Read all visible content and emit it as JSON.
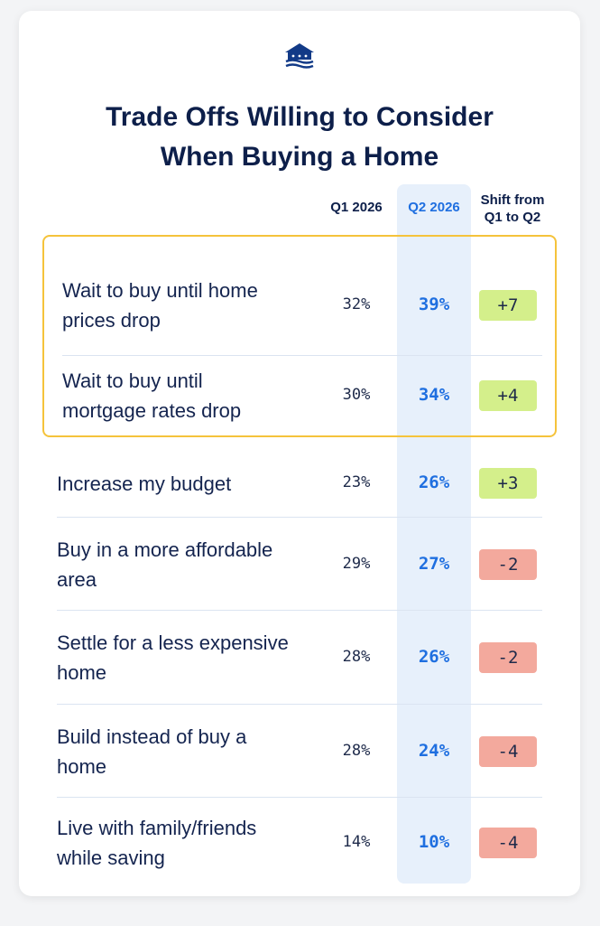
{
  "title_line1": "Trade Offs Willing to Consider",
  "title_line2": "When Buying a Home",
  "columns": {
    "q1": "Q1 2026",
    "q2": "Q2 2026",
    "shift_line1": "Shift from",
    "shift_line2": "Q1 to Q2"
  },
  "colors": {
    "title": "#0d1f4a",
    "q2_accent": "#1f6fe0",
    "positive_shift": "#d4ef8b",
    "negative_shift": "#f3a99d",
    "highlight_border": "#f5c33b"
  },
  "icons": {
    "logo": "house-flag-logo"
  },
  "chart_data": {
    "type": "table",
    "highlighted_rows": [
      0,
      1
    ],
    "rows": [
      {
        "label_line1": "Wait to buy until home",
        "label_line2": "prices drop",
        "q1": "32%",
        "q2": "39%",
        "shift": "+7"
      },
      {
        "label_line1": "Wait to buy until",
        "label_line2": "mortgage rates drop",
        "q1": "30%",
        "q2": "34%",
        "shift": "+4"
      },
      {
        "label_line1": "Increase my budget",
        "label_line2": "",
        "q1": "23%",
        "q2": "26%",
        "shift": "+3"
      },
      {
        "label_line1": "Buy in a more affordable",
        "label_line2": "area",
        "q1": "29%",
        "q2": "27%",
        "shift": "-2"
      },
      {
        "label_line1": "Settle for a less expensive",
        "label_line2": "home",
        "q1": "28%",
        "q2": "26%",
        "shift": "-2"
      },
      {
        "label_line1": "Build instead of buy a",
        "label_line2": "home",
        "q1": "28%",
        "q2": "24%",
        "shift": "-4"
      },
      {
        "label_line1": "Live with family/friends",
        "label_line2": "while saving",
        "q1": "14%",
        "q2": "10%",
        "shift": "-4"
      }
    ]
  }
}
